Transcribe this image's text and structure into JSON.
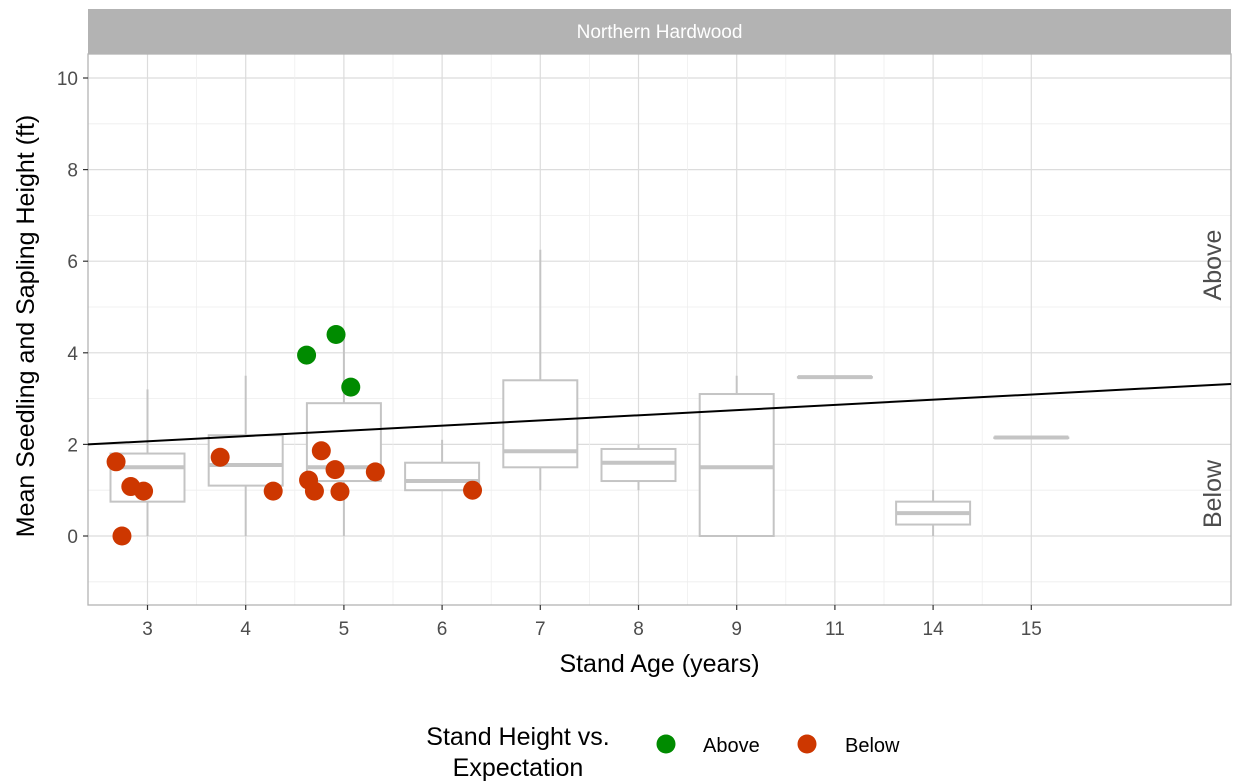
{
  "chart_data": {
    "type": "scatter",
    "facet_title": "Northern Hardwood",
    "xlabel": "Stand Age (years)",
    "ylabel": "Mean Seedling and Sapling Height (ft)",
    "x_categories": [
      "3",
      "4",
      "5",
      "6",
      "7",
      "8",
      "9",
      "11",
      "14",
      "15"
    ],
    "ylim": [
      -1.5,
      10.5
    ],
    "y_ticks": [
      0,
      2,
      4,
      6,
      8,
      10
    ],
    "grid": true,
    "side_labels": {
      "upper": "Above",
      "lower": "Below"
    },
    "boxplots": [
      {
        "x": "3",
        "whisker_low": 0.0,
        "q1": 0.75,
        "median": 1.5,
        "q3": 1.8,
        "whisker_high": 3.2
      },
      {
        "x": "4",
        "whisker_low": 0.0,
        "q1": 1.1,
        "median": 1.55,
        "q3": 2.2,
        "whisker_high": 3.5
      },
      {
        "x": "5",
        "whisker_low": 0.0,
        "q1": 1.2,
        "median": 1.5,
        "q3": 2.9,
        "whisker_high": 4.4
      },
      {
        "x": "6",
        "whisker_low": 1.0,
        "q1": 1.0,
        "median": 1.2,
        "q3": 1.6,
        "whisker_high": 2.1
      },
      {
        "x": "7",
        "whisker_low": 1.0,
        "q1": 1.5,
        "median": 1.85,
        "q3": 3.4,
        "whisker_high": 6.25
      },
      {
        "x": "8",
        "whisker_low": 1.0,
        "q1": 1.2,
        "median": 1.6,
        "q3": 1.9,
        "whisker_high": 2.0
      },
      {
        "x": "9",
        "whisker_low": 0.0,
        "q1": 0.0,
        "median": 1.5,
        "q3": 3.1,
        "whisker_high": 3.5
      },
      {
        "x": "11",
        "whisker_low": 3.47,
        "q1": 3.47,
        "median": 3.47,
        "q3": 3.47,
        "whisker_high": 3.47
      },
      {
        "x": "14",
        "whisker_low": 0.0,
        "q1": 0.25,
        "median": 0.5,
        "q3": 0.75,
        "whisker_high": 1.0
      },
      {
        "x": "15",
        "whisker_low": 2.15,
        "q1": 2.15,
        "median": 2.15,
        "q3": 2.15,
        "whisker_high": 2.15
      }
    ],
    "trend_line": {
      "y_start": 2.0,
      "y_end": 3.32
    },
    "series": [
      {
        "name": "Above",
        "color": "#008b00",
        "points": [
          {
            "x": 4.62,
            "y": 3.95
          },
          {
            "x": 4.92,
            "y": 4.4
          },
          {
            "x": 5.07,
            "y": 3.25
          }
        ]
      },
      {
        "name": "Below",
        "color": "#cd3700",
        "points": [
          {
            "x": 2.68,
            "y": 1.62
          },
          {
            "x": 2.74,
            "y": 0.0
          },
          {
            "x": 2.83,
            "y": 1.08
          },
          {
            "x": 2.96,
            "y": 0.98
          },
          {
            "x": 3.74,
            "y": 1.72
          },
          {
            "x": 4.28,
            "y": 0.98
          },
          {
            "x": 4.64,
            "y": 1.22
          },
          {
            "x": 4.7,
            "y": 0.98
          },
          {
            "x": 4.77,
            "y": 1.86
          },
          {
            "x": 4.91,
            "y": 1.45
          },
          {
            "x": 4.96,
            "y": 0.97
          },
          {
            "x": 5.32,
            "y": 1.4
          },
          {
            "x": 6.31,
            "y": 1.0
          }
        ]
      }
    ],
    "legend": {
      "title_lines": [
        "Stand Height vs.",
        "Expectation"
      ],
      "position": "bottom",
      "entries": [
        "Above",
        "Below"
      ]
    }
  }
}
